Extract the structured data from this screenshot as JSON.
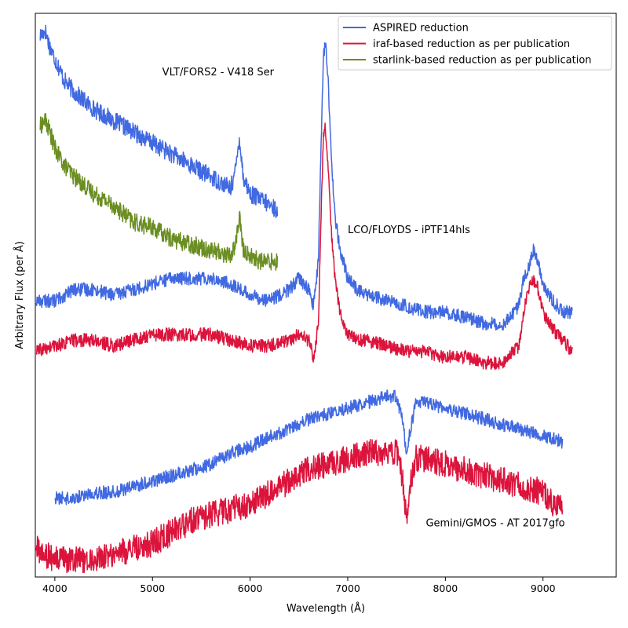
{
  "chart_data": {
    "type": "line",
    "title": "",
    "xlabel": "Wavelength (Å)",
    "ylabel": "Arbitrary Flux (per Å)",
    "xlim": [
      3800,
      9750
    ],
    "ylim": [
      0,
      100
    ],
    "x_ticks": [
      4000,
      5000,
      6000,
      7000,
      8000,
      9000
    ],
    "y_ticks": [],
    "grid": false,
    "legend_position": "top-right",
    "legend": [
      {
        "label": "ASPIRED reduction",
        "color": "#4169e1"
      },
      {
        "label": "iraf-based reduction as per publication",
        "color": "#dc143c"
      },
      {
        "label": "starlink-based reduction as per publication",
        "color": "#6b8e23"
      }
    ],
    "annotations": [
      {
        "text": "VLT/FORS2 - V418 Ser",
        "x": 5100,
        "y": 89
      },
      {
        "text": "LCO/FLOYDS - iPTF14hls",
        "x": 7000,
        "y": 61
      },
      {
        "text": "Gemini/GMOS - AT 2017gfo",
        "x": 7800,
        "y": 9
      }
    ],
    "series": [
      {
        "name": "VLT/FORS2 ASPIRED",
        "legend": "ASPIRED reduction",
        "color": "#4169e1",
        "noise": 1.6,
        "x": [
          3850,
          3900,
          3950,
          4000,
          4100,
          4200,
          4400,
          4600,
          4800,
          5000,
          5200,
          5400,
          5600,
          5800,
          5850,
          5890,
          5930,
          6000,
          6100,
          6200,
          6280
        ],
        "y": [
          96,
          97,
          94,
          92,
          88,
          86,
          83,
          81,
          79,
          77,
          75,
          73,
          71,
          69,
          72,
          78,
          71,
          68,
          67,
          66,
          65
        ]
      },
      {
        "name": "VLT/FORS2 starlink",
        "legend": "starlink-based reduction as per publication",
        "color": "#6b8e23",
        "noise": 1.6,
        "x": [
          3850,
          3900,
          3950,
          4000,
          4100,
          4200,
          4400,
          4600,
          4800,
          5000,
          5200,
          5400,
          5600,
          5800,
          5850,
          5890,
          5930,
          6000,
          6100,
          6200,
          6280
        ],
        "y": [
          80,
          81,
          79,
          76,
          73,
          71,
          68,
          66,
          63,
          62,
          60,
          59,
          58,
          57,
          59,
          64,
          58,
          57,
          56,
          56,
          56
        ]
      },
      {
        "name": "LCO/FLOYDS ASPIRED",
        "legend": "ASPIRED reduction",
        "color": "#4169e1",
        "noise": 1.2,
        "x": [
          3810,
          4000,
          4200,
          4400,
          4600,
          4800,
          5000,
          5200,
          5400,
          5600,
          5800,
          6000,
          6200,
          6400,
          6500,
          6600,
          6650,
          6700,
          6720,
          6750,
          6770,
          6800,
          6830,
          6870,
          6920,
          7000,
          7100,
          7200,
          7400,
          7600,
          7800,
          8000,
          8200,
          8400,
          8600,
          8750,
          8800,
          8850,
          8900,
          8950,
          9000,
          9100,
          9200,
          9300
        ],
        "y": [
          49,
          49,
          51,
          51,
          50,
          51,
          52,
          53,
          53,
          53,
          52,
          50,
          49,
          51,
          53,
          51,
          48,
          56,
          72,
          92,
          95,
          88,
          75,
          64,
          58,
          53,
          51,
          50,
          49,
          48,
          47,
          47,
          46,
          45,
          45,
          48,
          53,
          55,
          58,
          56,
          52,
          49,
          47,
          47
        ]
      },
      {
        "name": "LCO/FLOYDS iraf",
        "legend": "iraf-based reduction as per publication",
        "color": "#dc143c",
        "noise": 1.2,
        "x": [
          3810,
          4000,
          4200,
          4400,
          4600,
          4800,
          5000,
          5200,
          5400,
          5600,
          5800,
          6000,
          6200,
          6400,
          6500,
          6600,
          6650,
          6700,
          6720,
          6750,
          6770,
          6800,
          6830,
          6870,
          6920,
          7000,
          7100,
          7200,
          7400,
          7600,
          7800,
          8000,
          8200,
          8400,
          8600,
          8750,
          8800,
          8850,
          8900,
          8950,
          9000,
          9100,
          9200,
          9300
        ],
        "y": [
          40,
          41,
          42,
          42,
          41,
          42,
          43,
          43,
          43,
          43,
          42,
          41,
          41,
          42,
          43,
          42,
          39,
          45,
          60,
          78,
          80,
          73,
          62,
          53,
          47,
          43,
          42,
          42,
          41,
          40,
          40,
          39,
          39,
          38,
          38,
          41,
          47,
          51,
          53,
          51,
          47,
          44,
          42,
          40
        ]
      },
      {
        "name": "Gemini/GMOS ASPIRED",
        "legend": "ASPIRED reduction",
        "color": "#4169e1",
        "noise": 1.2,
        "x": [
          4000,
          4200,
          4400,
          4600,
          4800,
          5000,
          5200,
          5400,
          5600,
          5800,
          6000,
          6200,
          6400,
          6600,
          6800,
          7000,
          7200,
          7400,
          7500,
          7560,
          7600,
          7650,
          7700,
          7800,
          8000,
          8200,
          8400,
          8600,
          8800,
          9000,
          9200
        ],
        "y": [
          14,
          14,
          15,
          15,
          16,
          17,
          18,
          19,
          20,
          22,
          23,
          25,
          26,
          28,
          29,
          30,
          31,
          32,
          32,
          28,
          22,
          27,
          31,
          31,
          30,
          29,
          28,
          27,
          26,
          25,
          24
        ]
      },
      {
        "name": "Gemini/GMOS iraf",
        "legend": "iraf-based reduction as per publication",
        "color": "#dc143c",
        "noise": 2.4,
        "x": [
          3810,
          3900,
          4000,
          4200,
          4400,
          4600,
          4800,
          5000,
          5200,
          5400,
          5600,
          5800,
          6000,
          6200,
          6400,
          6600,
          6800,
          7000,
          7200,
          7400,
          7500,
          7560,
          7600,
          7650,
          7700,
          7800,
          8000,
          8200,
          8400,
          8600,
          8800,
          9000,
          9100,
          9200
        ],
        "y": [
          5,
          4,
          3,
          3,
          3,
          4,
          5,
          6,
          8,
          10,
          11,
          12,
          13,
          15,
          17,
          19,
          20,
          21,
          22,
          22,
          22,
          18,
          10,
          17,
          21,
          21,
          20,
          19,
          18,
          17,
          16,
          15,
          13,
          13
        ]
      }
    ]
  }
}
